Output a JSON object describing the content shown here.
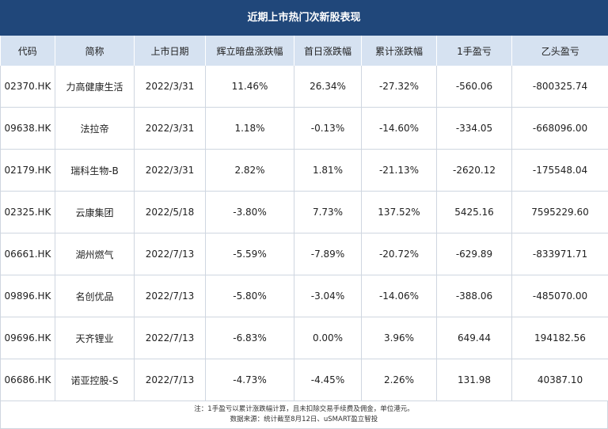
{
  "title": "近期上市热门次新股表现",
  "columns": [
    "代码",
    "简称",
    "上市日期",
    "辉立暗盘涨跌幅",
    "首日涨跌幅",
    "累计涨跌幅",
    "1手盈亏",
    "乙头盈亏"
  ],
  "rows": [
    [
      "02370.HK",
      "力高健康生活",
      "2022/3/31",
      "11.46%",
      "26.34%",
      "-27.32%",
      "-560.06",
      "-800325.74"
    ],
    [
      "09638.HK",
      "法拉帝",
      "2022/3/31",
      "1.18%",
      "-0.13%",
      "-14.60%",
      "-334.05",
      "-668096.00"
    ],
    [
      "02179.HK",
      "瑞科生物-B",
      "2022/3/31",
      "2.82%",
      "1.81%",
      "-21.13%",
      "-2620.12",
      "-175548.04"
    ],
    [
      "02325.HK",
      "云康集团",
      "2022/5/18",
      "-3.80%",
      "7.73%",
      "137.52%",
      "5425.16",
      "7595229.60"
    ],
    [
      "06661.HK",
      "湖州燃气",
      "2022/7/13",
      "-5.59%",
      "-7.89%",
      "-20.72%",
      "-629.89",
      "-833971.71"
    ],
    [
      "09896.HK",
      "名创优品",
      "2022/7/13",
      "-5.80%",
      "-3.04%",
      "-14.06%",
      "-388.06",
      "-485070.00"
    ],
    [
      "09696.HK",
      "天齐锂业",
      "2022/7/13",
      "-6.83%",
      "0.00%",
      "3.96%",
      "649.44",
      "194182.56"
    ],
    [
      "06686.HK",
      "诺亚控股-S",
      "2022/7/13",
      "-4.73%",
      "-4.45%",
      "2.26%",
      "131.98",
      "40387.10"
    ]
  ],
  "notes": {
    "line1": "注：1手盈亏以累计涨跌幅计算，且未扣除交易手续费及佣金，单位港元。",
    "line2": "数据来源：统计截至8月12日、uSMART盈立智投"
  }
}
